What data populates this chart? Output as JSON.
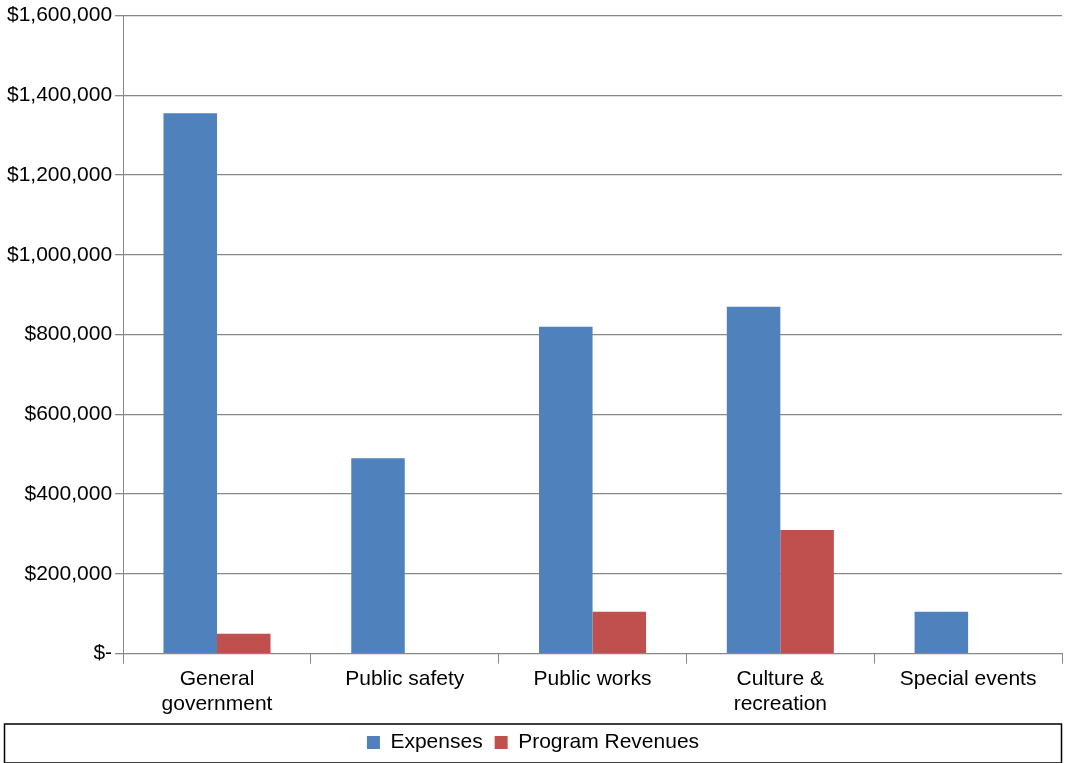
{
  "chart_data": {
    "type": "bar",
    "categories": [
      "General government",
      "Public safety",
      "Public works",
      "Culture & recreation",
      "Special events"
    ],
    "series": [
      {
        "name": "Expenses",
        "color": "#4f81bd",
        "values": [
          1355000,
          490000,
          820000,
          870000,
          105000
        ]
      },
      {
        "name": "Program Revenues",
        "color": "#c0504d",
        "values": [
          50000,
          0,
          105000,
          310000,
          0
        ]
      }
    ],
    "ylim": [
      0,
      1600000
    ],
    "yticks": [
      {
        "value": 0,
        "label": "$-"
      },
      {
        "value": 200000,
        "label": "$200,000"
      },
      {
        "value": 400000,
        "label": "$400,000"
      },
      {
        "value": 600000,
        "label": "$600,000"
      },
      {
        "value": 800000,
        "label": "$800,000"
      },
      {
        "value": 1000000,
        "label": "$1,000,000"
      },
      {
        "value": 1200000,
        "label": "$1,200,000"
      },
      {
        "value": 1400000,
        "label": "$1,400,000"
      },
      {
        "value": 1600000,
        "label": "$1,600,000"
      }
    ],
    "grid": "y",
    "legend": "bottom"
  }
}
